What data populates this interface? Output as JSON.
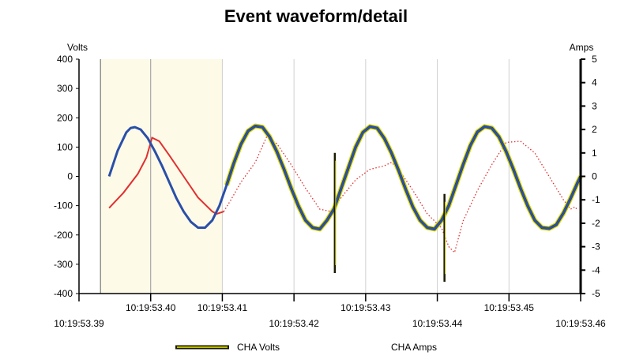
{
  "chart_data": {
    "type": "line",
    "title": "Event waveform/detail",
    "ylabel_left": "Volts",
    "ylabel_right": "Amps",
    "ylim_left": [
      -400,
      400
    ],
    "ylim_right": [
      -5,
      5
    ],
    "yticks_left": [
      "400",
      "300",
      "200",
      "100",
      "0",
      "-100",
      "-200",
      "-300",
      "-400"
    ],
    "yticks_right": [
      "5",
      "4",
      "3",
      "2",
      "1",
      "0",
      "-1",
      "-2",
      "-3",
      "-4",
      "-5"
    ],
    "xlim": [
      "10:19:53.39",
      "10:19:53.46"
    ],
    "xticks": [
      {
        "label": "10:19:53.39",
        "row": 2
      },
      {
        "label": "10:19:53.40",
        "row": 1
      },
      {
        "label": "10:19:53.41",
        "row": 1
      },
      {
        "label": "10:19:53.42",
        "row": 2
      },
      {
        "label": "10:19:53.43",
        "row": 1
      },
      {
        "label": "10:19:53.44",
        "row": 2
      },
      {
        "label": "10:19:53.45",
        "row": 1
      },
      {
        "label": "10:19:53.46",
        "row": 2
      }
    ],
    "highlight_region": [
      "10:19:53.393",
      "10:19:53.410"
    ],
    "grid": true,
    "legend_position": "bottom",
    "series": [
      {
        "name": "CHA Volts",
        "axis": "left",
        "color": "#2a4fa8",
        "trace_color": "#d4d400",
        "x_ms": [
          394.2,
          395.4,
          396.6,
          397.2,
          397.8,
          398.6,
          399.6,
          400.6,
          401.6,
          402.6,
          403.6,
          404.6,
          405.6,
          406.6,
          407.6,
          408.6,
          409.6,
          410.6,
          411.6,
          412.6,
          413.6,
          414.6,
          415.6,
          416.6,
          417.6,
          418.6,
          419.6,
          420.6,
          421.6,
          422.6,
          423.6,
          424.6,
          425.6,
          426.6,
          427.6,
          428.6,
          429.6,
          430.6,
          431.6,
          432.6,
          433.6,
          434.6,
          435.6,
          436.6,
          437.6,
          438.6,
          439.6,
          440.6,
          441.6,
          442.6,
          443.6,
          444.6,
          445.6,
          446.6,
          447.6,
          448.6,
          449.6,
          450.6,
          451.6,
          452.6,
          453.6,
          454.6,
          455.6,
          456.6,
          457.6,
          458.6,
          459.6,
          460.0
        ],
        "values": [
          0,
          88,
          150,
          165,
          168,
          160,
          130,
          85,
          35,
          -20,
          -75,
          -120,
          -155,
          -175,
          -175,
          -150,
          -100,
          -30,
          45,
          110,
          155,
          172,
          168,
          135,
          85,
          25,
          -40,
          -100,
          -150,
          -175,
          -180,
          -150,
          -110,
          -40,
          30,
          100,
          150,
          170,
          165,
          130,
          80,
          20,
          -45,
          -105,
          -150,
          -175,
          -180,
          -150,
          -100,
          -30,
          40,
          105,
          152,
          170,
          165,
          135,
          85,
          25,
          -40,
          -100,
          -150,
          -175,
          -178,
          -165,
          -125,
          -75,
          -20,
          0
        ]
      },
      {
        "name": "CHA Amps",
        "axis": "right",
        "color": "#e03030",
        "x_ms": [
          394.2,
          396.2,
          398.2,
          399.4,
          400.2,
          401.2,
          402.6,
          404.6,
          406.6,
          408.6,
          409.2,
          410.2,
          411.2,
          412.6,
          414.6,
          416.2,
          417.6,
          419.6,
          421.6,
          423.6,
          425.2,
          426.6,
          428.6,
          430.6,
          432.6,
          433.6,
          434.6,
          436.6,
          438.6,
          440.6,
          441.6,
          442.4,
          443.6,
          445.6,
          447.6,
          449.6,
          451.6,
          453.6,
          455.6,
          457.6,
          458.6,
          459.2,
          459.6
        ],
        "values": [
          -1.35,
          -0.7,
          0.1,
          0.8,
          1.65,
          1.5,
          0.9,
          0,
          -0.9,
          -1.5,
          -1.6,
          -1.5,
          -1.0,
          -0.25,
          0.6,
          1.7,
          1.4,
          0.5,
          -0.5,
          -1.4,
          -1.5,
          -0.9,
          -0.15,
          0.3,
          0.45,
          0.6,
          0.3,
          -0.6,
          -1.6,
          -2.2,
          -3.0,
          -3.25,
          -1.9,
          -0.6,
          0.5,
          1.45,
          1.5,
          1.0,
          0,
          -1.0,
          -1.4,
          -1.3,
          -1.45
        ]
      }
    ],
    "spikes": [
      {
        "series": "CHA Volts",
        "x_ms": 425.7,
        "values": [
          -330,
          80
        ]
      },
      {
        "series": "CHA Volts",
        "x_ms": 441.0,
        "values": [
          -360,
          -60
        ]
      }
    ]
  }
}
